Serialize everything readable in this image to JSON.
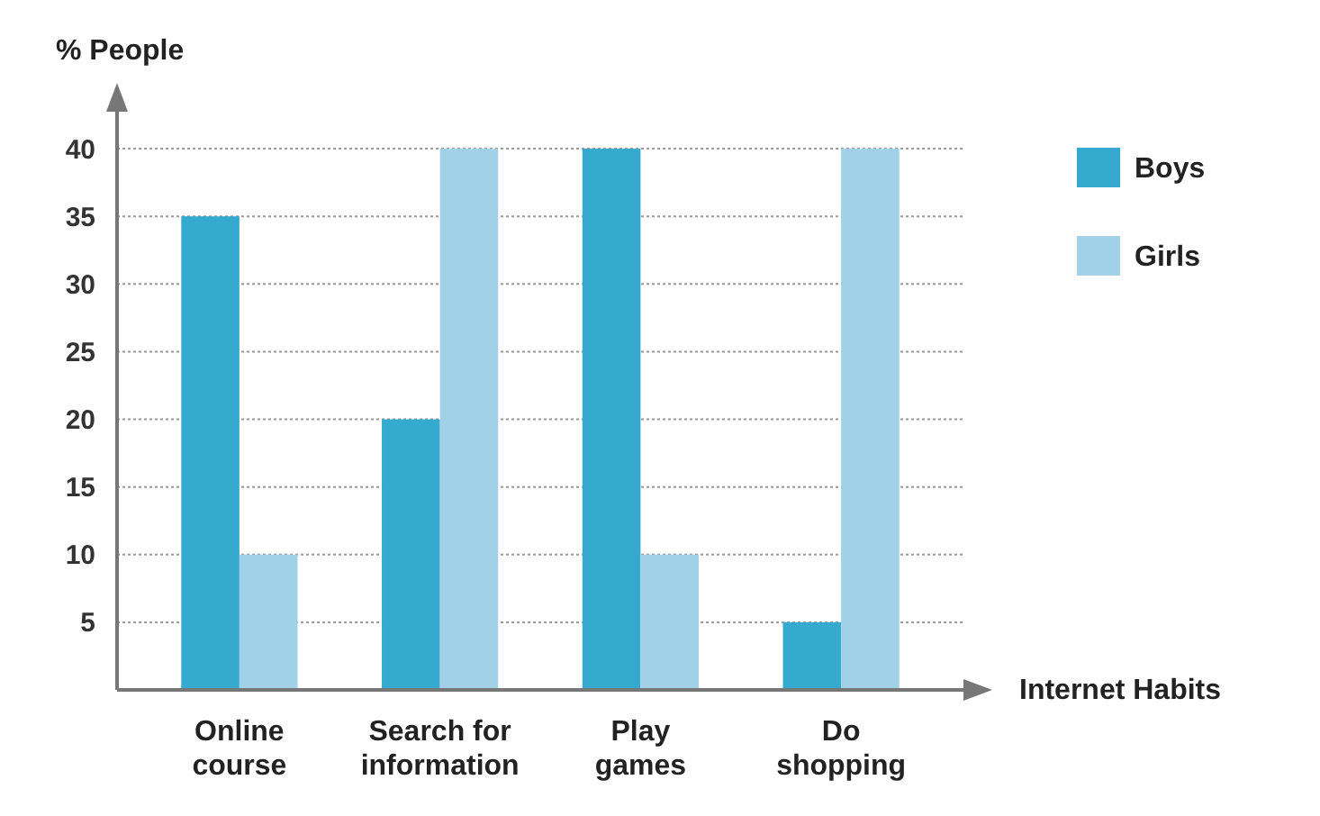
{
  "chart_data": {
    "type": "bar",
    "ylabel": "% People",
    "xlabel": "Internet Habits",
    "categories": [
      "Online course",
      "Search for information",
      "Play games",
      "Do shopping"
    ],
    "series": [
      {
        "name": "Boys",
        "color": "#36a9cf",
        "values": [
          35,
          20,
          40,
          5
        ]
      },
      {
        "name": "Girls",
        "color": "#a0d1e7",
        "values": [
          10,
          40,
          10,
          40
        ]
      }
    ],
    "ylim": [
      0,
      43
    ],
    "yticks": [
      5,
      10,
      15,
      20,
      25,
      30,
      35,
      40
    ],
    "grid": "y",
    "legend": "right"
  }
}
